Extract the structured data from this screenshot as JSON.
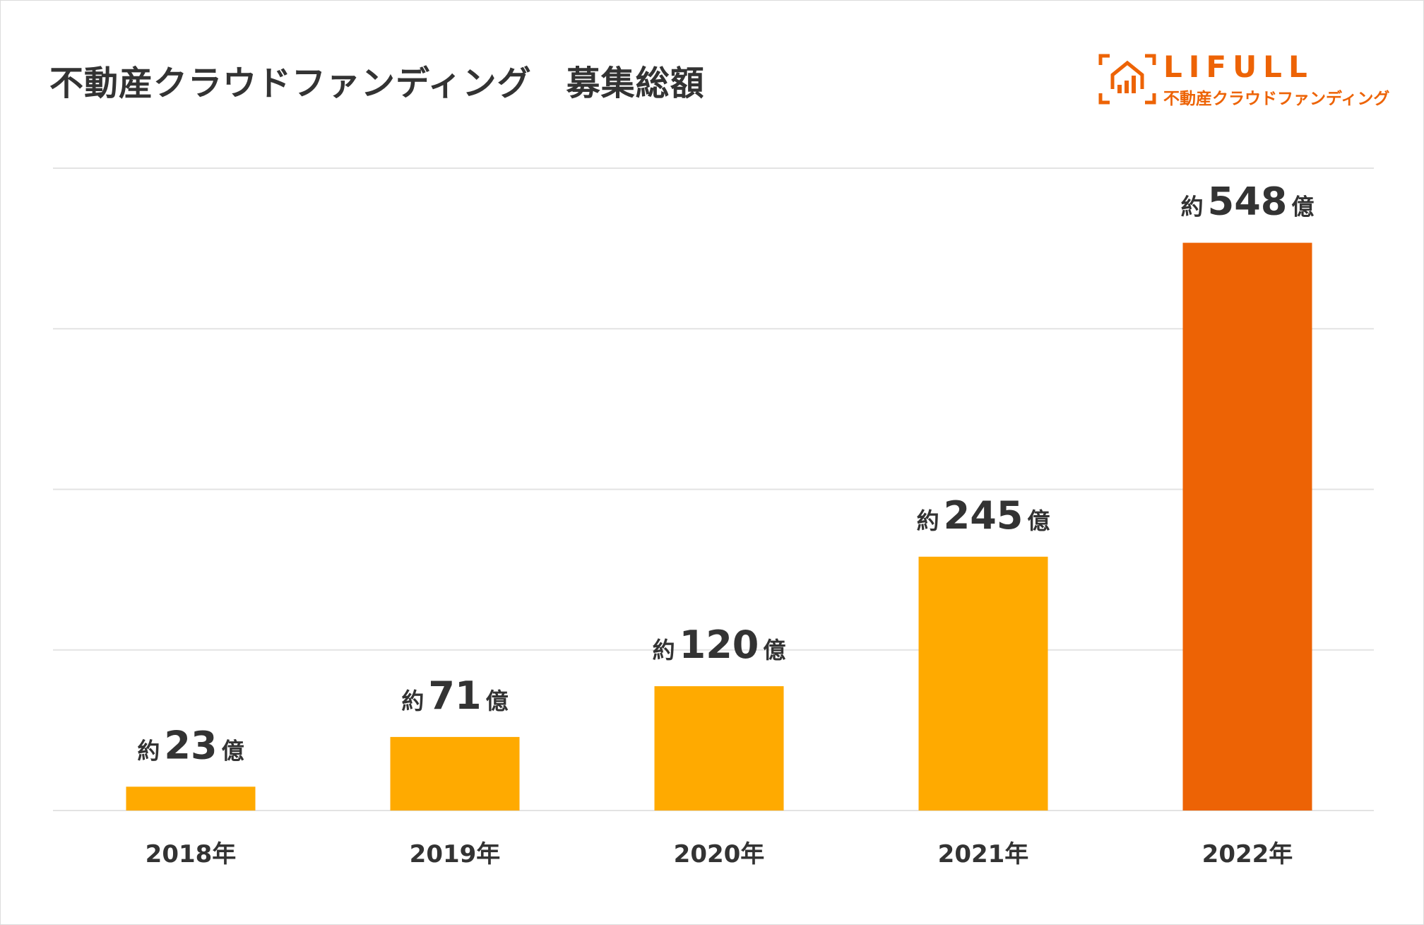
{
  "title": "不動産クラウドファンディング　募集総額",
  "logo": {
    "icon": "house-chart-icon",
    "word": "LIFULL",
    "sub": "不動産クラウドファンディング"
  },
  "colors": {
    "bar": "#ffaa00",
    "highlight": "#ed6305",
    "grid": "#e3e3e3",
    "text": "#333333"
  },
  "chart_data": {
    "type": "bar",
    "categories": [
      "2018年",
      "2019年",
      "2020年",
      "2021年",
      "2022年"
    ],
    "values": [
      23,
      71,
      120,
      245,
      548
    ],
    "value_labels": [
      {
        "prefix": "約",
        "number": "23",
        "suffix": "億"
      },
      {
        "prefix": "約",
        "number": "71",
        "suffix": "億"
      },
      {
        "prefix": "約",
        "number": "120",
        "suffix": "億"
      },
      {
        "prefix": "約",
        "number": "245",
        "suffix": "億"
      },
      {
        "prefix": "約",
        "number": "548",
        "suffix": "億"
      }
    ],
    "highlight_index": 4,
    "ylim": [
      0,
      620
    ],
    "gridlines": 4,
    "grid": true,
    "title": "不動産クラウドファンディング　募集総額",
    "xlabel": "",
    "ylabel": ""
  }
}
